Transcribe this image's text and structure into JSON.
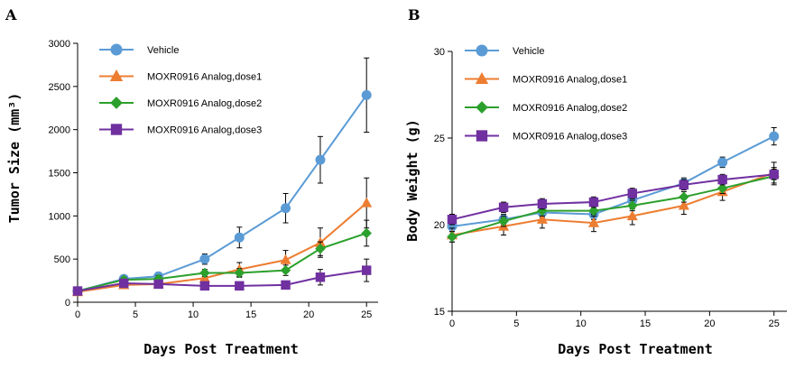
{
  "panels": {
    "a": {
      "letter": "A"
    },
    "b": {
      "letter": "B"
    }
  },
  "chart_data": [
    {
      "type": "line",
      "panel": "A",
      "xlabel": "Days Post Treatment",
      "ylabel": "Tumor Size (mm³)",
      "x": [
        0,
        4,
        7,
        11,
        14,
        18,
        21,
        25
      ],
      "xlim": [
        0,
        26
      ],
      "ylim": [
        0,
        3000
      ],
      "xticks": [
        0,
        5,
        10,
        15,
        20,
        25
      ],
      "yticks": [
        0,
        500,
        1000,
        1500,
        2000,
        2500,
        3000
      ],
      "grid": false,
      "legend_position": "top-left",
      "series": [
        {
          "name": "Vehicle",
          "color": "#5b9bd5",
          "marker": "circle",
          "values": [
            130,
            270,
            300,
            500,
            750,
            1090,
            1650,
            2400
          ],
          "errors": [
            20,
            30,
            40,
            60,
            120,
            170,
            270,
            430
          ]
        },
        {
          "name": "MOXR0916 Analog,dose1",
          "color": "#ed7d31",
          "marker": "triangle",
          "values": [
            120,
            200,
            210,
            280,
            380,
            490,
            690,
            1150
          ],
          "errors": [
            20,
            30,
            30,
            50,
            80,
            110,
            170,
            290
          ]
        },
        {
          "name": "MOXR0916 Analog,dose2",
          "color": "#2ca02c",
          "marker": "diamond",
          "values": [
            130,
            260,
            270,
            340,
            340,
            370,
            620,
            800
          ],
          "errors": [
            20,
            30,
            40,
            40,
            50,
            60,
            80,
            150
          ]
        },
        {
          "name": "MOXR0916 Analog,dose3",
          "color": "#7030a0",
          "marker": "square",
          "values": [
            130,
            220,
            210,
            190,
            190,
            200,
            290,
            370
          ],
          "errors": [
            20,
            30,
            30,
            30,
            40,
            40,
            90,
            130
          ]
        }
      ]
    },
    {
      "type": "line",
      "panel": "B",
      "xlabel": "Days Post Treatment",
      "ylabel": "Body Weight (g)",
      "x": [
        0,
        4,
        7,
        11,
        14,
        18,
        21,
        25
      ],
      "xlim": [
        0,
        26
      ],
      "ylim": [
        15,
        30
      ],
      "xticks": [
        0,
        5,
        10,
        15,
        20,
        25
      ],
      "yticks": [
        15,
        20,
        25,
        30
      ],
      "grid": false,
      "legend_position": "top-left",
      "series": [
        {
          "name": "Vehicle",
          "color": "#5b9bd5",
          "marker": "circle",
          "values": [
            19.9,
            20.3,
            20.7,
            20.6,
            21.4,
            22.4,
            23.6,
            25.1
          ],
          "errors": [
            0.3,
            0.3,
            0.3,
            0.3,
            0.5,
            0.3,
            0.3,
            0.5
          ]
        },
        {
          "name": "MOXR0916 Analog,dose1",
          "color": "#ed7d31",
          "marker": "triangle",
          "values": [
            19.4,
            19.9,
            20.3,
            20.1,
            20.5,
            21.1,
            21.9,
            23.0
          ],
          "errors": [
            0.4,
            0.5,
            0.5,
            0.5,
            0.5,
            0.5,
            0.5,
            0.6
          ]
        },
        {
          "name": "MOXR0916 Analog,dose2",
          "color": "#2ca02c",
          "marker": "diamond",
          "values": [
            19.3,
            20.2,
            20.8,
            20.8,
            21.1,
            21.6,
            22.1,
            22.8
          ],
          "errors": [
            0.3,
            0.3,
            0.3,
            0.3,
            0.3,
            0.3,
            0.3,
            0.5
          ]
        },
        {
          "name": "MOXR0916 Analog,dose3",
          "color": "#7030a0",
          "marker": "square",
          "values": [
            20.3,
            21.0,
            21.2,
            21.3,
            21.8,
            22.3,
            22.6,
            22.9
          ],
          "errors": [
            0.3,
            0.3,
            0.3,
            0.3,
            0.3,
            0.3,
            0.3,
            0.3
          ]
        }
      ]
    }
  ]
}
